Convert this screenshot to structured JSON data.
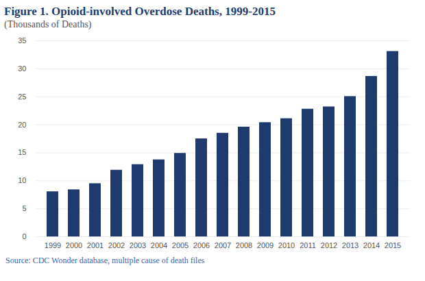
{
  "chart_data": {
    "type": "bar",
    "title": "Figure 1. Opioid-involved Overdose Deaths, 1999-2015",
    "subtitle": "(Thousands of Deaths)",
    "caption": "Source: CDC Wonder database, multiple cause of death files",
    "categories": [
      "1999",
      "2000",
      "2001",
      "2002",
      "2003",
      "2004",
      "2005",
      "2006",
      "2007",
      "2008",
      "2009",
      "2010",
      "2011",
      "2012",
      "2013",
      "2014",
      "2015"
    ],
    "values": [
      8.05,
      8.4,
      9.5,
      11.9,
      12.9,
      13.75,
      14.9,
      17.5,
      18.5,
      19.6,
      20.4,
      21.1,
      22.8,
      23.2,
      25.05,
      28.65,
      33.1
    ],
    "color": "#1f3a6e",
    "ylim": [
      0,
      35
    ],
    "yticks": [
      0,
      5,
      10,
      15,
      20,
      25,
      30,
      35
    ],
    "grid": true
  }
}
